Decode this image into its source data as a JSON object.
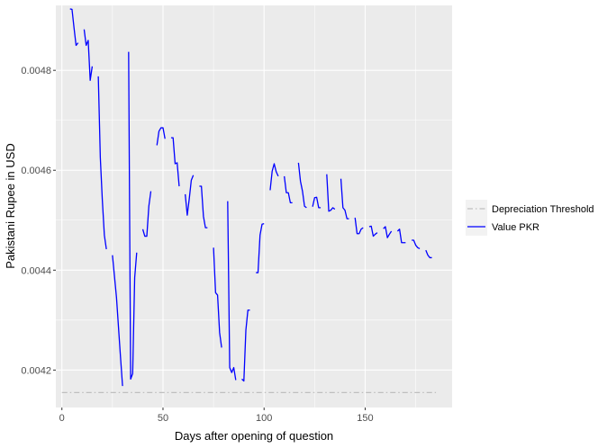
{
  "chart_data": {
    "type": "line",
    "title": "",
    "xlabel": "Days after opening of question",
    "ylabel": "Pakistani Rupee in USD",
    "xlim": [
      -3,
      193
    ],
    "ylim": [
      0.004125,
      0.00493
    ],
    "x_ticks": [
      0,
      50,
      100,
      150
    ],
    "x_tick_labels": [
      "0",
      "50",
      "100",
      "150"
    ],
    "x_minor_ticks": [
      25,
      75,
      125,
      175
    ],
    "y_ticks": [
      0.0042,
      0.0044,
      0.0046,
      0.0048
    ],
    "y_tick_labels": [
      "0.0042",
      "0.0044",
      "0.0046",
      "0.0048"
    ],
    "y_minor_ticks": [
      0.0043,
      0.0045,
      0.0047
    ],
    "grid": true,
    "background": "#ebebeb",
    "legend_position": "right",
    "series": [
      {
        "name": "Depreciation Threshold",
        "color": "#bebebe",
        "dash": "dashdot",
        "segments": [
          [
            [
              0,
              0.004155
            ],
            [
              185,
              0.004155
            ]
          ]
        ]
      },
      {
        "name": "Value PKR",
        "color": "#0000ff",
        "dash": "solid",
        "segments": [
          [
            [
              4,
              0.004923
            ],
            [
              5,
              0.004922
            ],
            [
              6,
              0.004885
            ],
            [
              7,
              0.00485
            ],
            [
              8,
              0.004855
            ]
          ],
          [
            [
              11,
              0.004882
            ],
            [
              12,
              0.00485
            ],
            [
              13,
              0.00486
            ],
            [
              14,
              0.00478
            ],
            [
              15,
              0.004808
            ]
          ],
          [
            [
              18,
              0.004788
            ],
            [
              19,
              0.004625
            ],
            [
              20,
              0.00454
            ],
            [
              21,
              0.00447
            ],
            [
              22,
              0.004442
            ]
          ],
          [
            [
              25,
              0.00443
            ],
            [
              27,
              0.004345
            ],
            [
              29,
              0.004225
            ],
            [
              30,
              0.004168
            ]
          ],
          [
            [
              33,
              0.004837
            ],
            [
              34,
              0.004182
            ],
            [
              35,
              0.004193
            ],
            [
              36,
              0.004385
            ],
            [
              37,
              0.004435
            ]
          ],
          [
            [
              40,
              0.004482
            ],
            [
              41,
              0.004468
            ],
            [
              42,
              0.004468
            ],
            [
              43,
              0.004528
            ],
            [
              44,
              0.004558
            ]
          ],
          [
            [
              47,
              0.00465
            ],
            [
              48,
              0.004678
            ],
            [
              49,
              0.004685
            ],
            [
              50,
              0.004685
            ],
            [
              51,
              0.004663
            ]
          ],
          [
            [
              54,
              0.004665
            ],
            [
              55,
              0.004665
            ],
            [
              56,
              0.004613
            ],
            [
              57,
              0.004615
            ],
            [
              58,
              0.004568
            ]
          ],
          [
            [
              61,
              0.004552
            ],
            [
              62,
              0.00451
            ],
            [
              63,
              0.004543
            ],
            [
              64,
              0.00458
            ],
            [
              65,
              0.00459
            ]
          ],
          [
            [
              68,
              0.004568
            ],
            [
              69,
              0.004568
            ],
            [
              70,
              0.004508
            ],
            [
              71,
              0.004485
            ],
            [
              72,
              0.004485
            ]
          ],
          [
            [
              75,
              0.004445
            ],
            [
              76,
              0.004355
            ],
            [
              77,
              0.00435
            ],
            [
              78,
              0.004275
            ],
            [
              79,
              0.004245
            ]
          ],
          [
            [
              82,
              0.004538
            ],
            [
              83,
              0.004205
            ],
            [
              84,
              0.004195
            ],
            [
              85,
              0.004205
            ],
            [
              86,
              0.00418
            ]
          ],
          [
            [
              89,
              0.004182
            ],
            [
              90,
              0.004178
            ],
            [
              91,
              0.00428
            ],
            [
              92,
              0.00432
            ],
            [
              93,
              0.00432
            ]
          ],
          [
            [
              96,
              0.004395
            ],
            [
              97,
              0.004395
            ],
            [
              98,
              0.00447
            ],
            [
              99,
              0.004492
            ],
            [
              100,
              0.004493
            ]
          ],
          [
            [
              103,
              0.00456
            ],
            [
              104,
              0.004598
            ],
            [
              105,
              0.004613
            ],
            [
              106,
              0.004597
            ],
            [
              107,
              0.004588
            ]
          ],
          [
            [
              110,
              0.004588
            ],
            [
              111,
              0.004555
            ],
            [
              112,
              0.004555
            ],
            [
              113,
              0.004535
            ],
            [
              114,
              0.004535
            ]
          ],
          [
            [
              117,
              0.004615
            ],
            [
              118,
              0.004578
            ],
            [
              119,
              0.004558
            ],
            [
              120,
              0.004528
            ],
            [
              121,
              0.004525
            ]
          ],
          [
            [
              124,
              0.004527
            ],
            [
              125,
              0.004545
            ],
            [
              126,
              0.004546
            ],
            [
              127,
              0.004525
            ],
            [
              128,
              0.004525
            ]
          ],
          [
            [
              131,
              0.004592
            ],
            [
              132,
              0.004518
            ],
            [
              133,
              0.00452
            ],
            [
              134,
              0.004525
            ],
            [
              135,
              0.004522
            ]
          ],
          [
            [
              138,
              0.004583
            ],
            [
              139,
              0.004525
            ],
            [
              140,
              0.00452
            ],
            [
              141,
              0.004503
            ],
            [
              142,
              0.004503
            ]
          ],
          [
            [
              145,
              0.004505
            ],
            [
              146,
              0.004473
            ],
            [
              147,
              0.004473
            ],
            [
              148,
              0.004482
            ],
            [
              149,
              0.004485
            ]
          ],
          [
            [
              152,
              0.004487
            ],
            [
              153,
              0.004488
            ],
            [
              154,
              0.004468
            ],
            [
              155,
              0.004472
            ],
            [
              156,
              0.004475
            ]
          ],
          [
            [
              159,
              0.004483
            ],
            [
              160,
              0.004487
            ],
            [
              161,
              0.004465
            ],
            [
              162,
              0.004472
            ],
            [
              163,
              0.004478
            ]
          ],
          [
            [
              166,
              0.004478
            ],
            [
              167,
              0.004482
            ],
            [
              168,
              0.004455
            ],
            [
              169,
              0.004455
            ],
            [
              170,
              0.004455
            ]
          ],
          [
            [
              173,
              0.00446
            ],
            [
              174,
              0.00446
            ],
            [
              175,
              0.00445
            ],
            [
              176,
              0.004445
            ],
            [
              177,
              0.004443
            ]
          ],
          [
            [
              180,
              0.00444
            ],
            [
              181,
              0.00443
            ],
            [
              182,
              0.004425
            ],
            [
              183,
              0.004425
            ]
          ]
        ]
      }
    ]
  }
}
